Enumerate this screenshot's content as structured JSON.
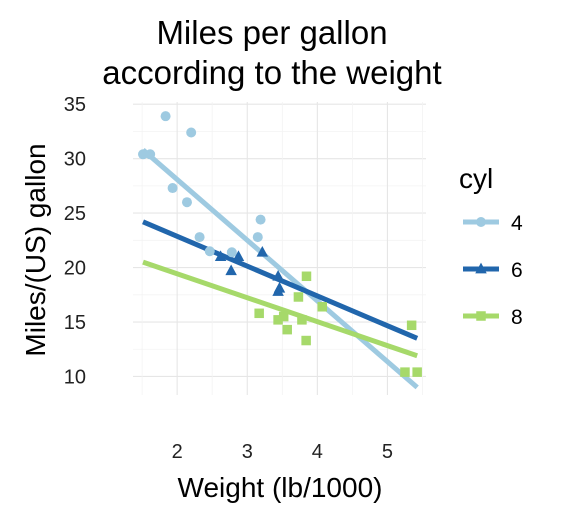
{
  "chart_data": {
    "type": "scatter",
    "title": [
      "Miles per gallon",
      "according to the weight"
    ],
    "xlabel": "Weight (lb/1000)",
    "ylabel": "Miles/(US) gallon",
    "xlim": [
      1.37,
      5.55
    ],
    "ylim": [
      8.3,
      35.2
    ],
    "x_ticks": [
      2,
      3,
      4,
      5
    ],
    "y_ticks": [
      10,
      15,
      20,
      25,
      30,
      35
    ],
    "grid": true,
    "legend": {
      "title": "cyl",
      "position": "right"
    },
    "series": [
      {
        "name": "4",
        "color": "#9ecae1",
        "marker": "circle",
        "points": [
          [
            1.513,
            30.4
          ],
          [
            1.615,
            30.4
          ],
          [
            1.835,
            33.9
          ],
          [
            1.935,
            27.3
          ],
          [
            2.2,
            32.4
          ],
          [
            2.14,
            26.0
          ],
          [
            2.32,
            22.8
          ],
          [
            2.465,
            21.5
          ],
          [
            2.78,
            21.4
          ],
          [
            3.15,
            22.8
          ],
          [
            3.19,
            24.4
          ]
        ],
        "fit": [
          [
            1.513,
            30.8
          ],
          [
            5.424,
            9.0
          ]
        ]
      },
      {
        "name": "6",
        "color": "#2166ac",
        "marker": "triangle",
        "points": [
          [
            2.62,
            21.0
          ],
          [
            2.875,
            21.0
          ],
          [
            2.77,
            19.7
          ],
          [
            3.215,
            21.4
          ],
          [
            3.44,
            19.2
          ],
          [
            3.46,
            18.1
          ],
          [
            3.44,
            17.8
          ]
        ],
        "fit": [
          [
            1.513,
            24.2
          ],
          [
            5.424,
            13.5
          ]
        ]
      },
      {
        "name": "8",
        "color": "#a6d96a",
        "marker": "square",
        "points": [
          [
            3.17,
            15.8
          ],
          [
            3.44,
            15.2
          ],
          [
            3.52,
            15.5
          ],
          [
            3.57,
            14.3
          ],
          [
            3.73,
            17.3
          ],
          [
            3.78,
            15.2
          ],
          [
            3.84,
            13.3
          ],
          [
            3.845,
            19.2
          ],
          [
            4.07,
            16.4
          ],
          [
            5.25,
            10.4
          ],
          [
            5.345,
            14.7
          ],
          [
            5.424,
            10.4
          ]
        ],
        "fit": [
          [
            1.513,
            20.5
          ],
          [
            5.424,
            11.9
          ]
        ]
      }
    ]
  }
}
